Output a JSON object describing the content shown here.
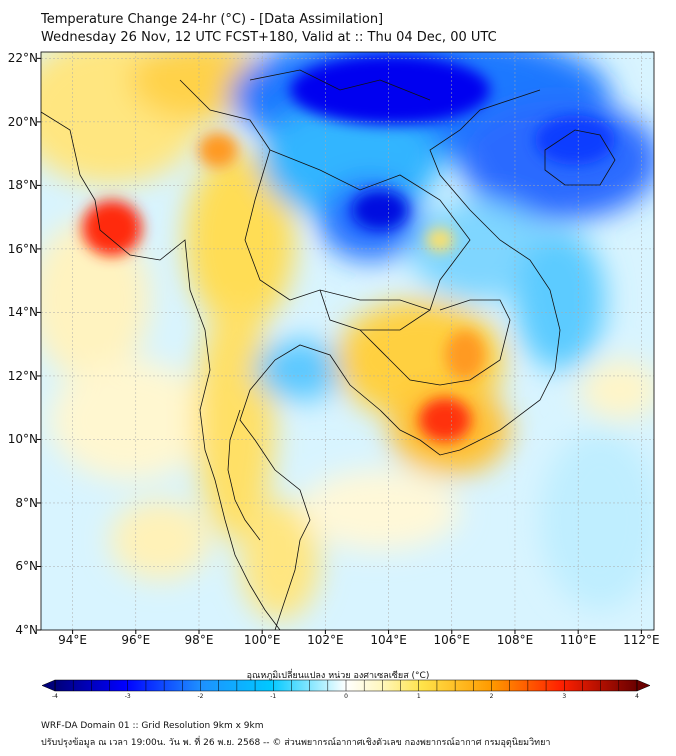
{
  "header": {
    "title_line1": "Temperature Change 24-hr (°C) - [Data Assimilation]",
    "title_line2": "Wednesday 26 Nov, 12 UTC FCST+180, Valid at :: Thu 04 Dec, 00 UTC"
  },
  "axes": {
    "lat_labels": [
      "22°N",
      "20°N",
      "18°N",
      "16°N",
      "14°N",
      "12°N",
      "10°N",
      "8°N",
      "6°N",
      "4°N"
    ],
    "lon_labels": [
      "94°E",
      "96°E",
      "98°E",
      "100°E",
      "102°E",
      "104°E",
      "106°E",
      "108°E",
      "110°E",
      "112°E"
    ],
    "lat_range": [
      4,
      22.2
    ],
    "lon_range": [
      93,
      112.4
    ]
  },
  "colorbar": {
    "title": "อุณหภูมิเปลี่ยนแปลง หน่วย องศาเซลเซียส (°C)",
    "ticks": [
      "-4",
      "-3",
      "-2",
      "-1",
      "0",
      "1",
      "2",
      "3",
      "4"
    ],
    "range": [
      -4,
      4
    ],
    "colors": [
      "#000080",
      "#0000ff",
      "#1e90ff",
      "#00bfff",
      "#87ceeb",
      "#e0ffff",
      "#ffffff",
      "#fffacd",
      "#ffe066",
      "#ffc000",
      "#ff8000",
      "#ff2000",
      "#b00000",
      "#6a0000"
    ]
  },
  "footer": {
    "line1": "WRF-DA Domain 01 :: Grid Resolution 9km x 9km",
    "line2": "ปรับปรุงข้อมูล ณ เวลา 19:00น. วัน พ. ที่ 26 พ.ย. 2568 -- © ส่วนพยากรณ์อากาศเชิงตัวเลข กองพยากรณ์อากาศ กรมอุตุนิยมวิทยา"
  },
  "map_data": {
    "variable": "24-hr temperature change (°C)",
    "anomalies": [
      {
        "lon": 95.3,
        "lat": 16.8,
        "value": 3.0
      },
      {
        "lon": 98.8,
        "lat": 19.3,
        "value": 2.0
      },
      {
        "lon": 106.1,
        "lat": 10.4,
        "value": 3.0
      },
      {
        "lon": 106.6,
        "lat": 12.6,
        "value": 2.0
      },
      {
        "lon": 103.8,
        "lat": 21.5,
        "value": -3.0
      },
      {
        "lon": 103.9,
        "lat": 16.8,
        "value": -2.5
      },
      {
        "lon": 109.5,
        "lat": 18.5,
        "value": -2.5
      },
      {
        "lon": 101.2,
        "lat": 11.9,
        "value": -1.0
      }
    ]
  }
}
